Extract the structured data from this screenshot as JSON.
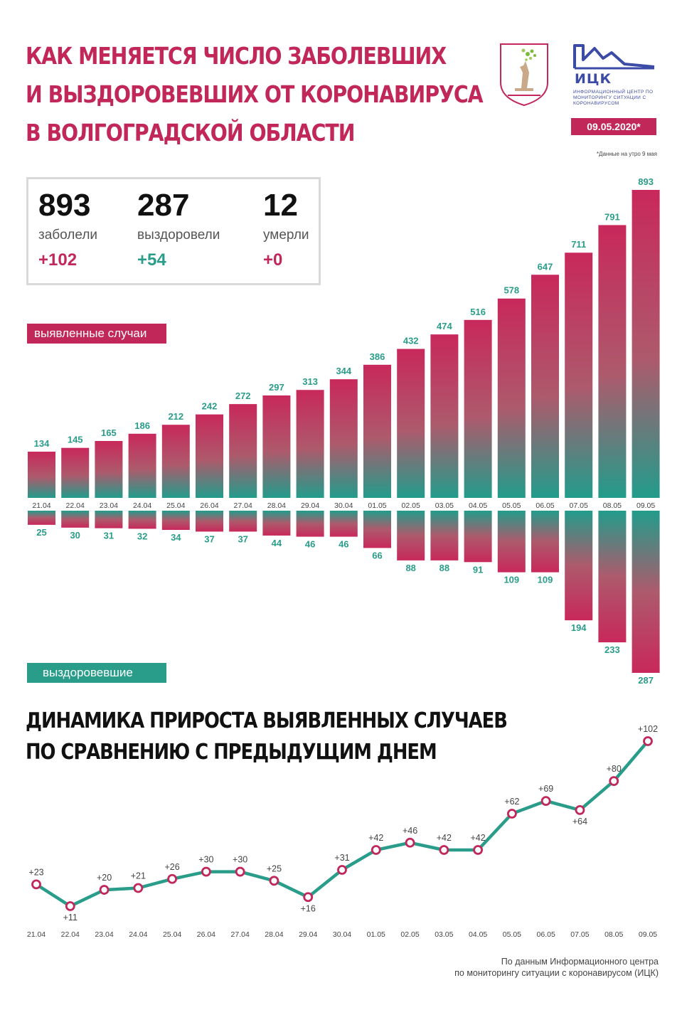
{
  "header": {
    "title_lines": [
      "КАК МЕНЯЕТСЯ ЧИСЛО ЗАБОЛЕВШИХ",
      "И ВЫЗДОРОВЕВШИХ ОТ КОРОНАВИРУСА",
      "В ВОЛГОГРАДСКОЙ ОБЛАСТИ"
    ],
    "logo_name": "ИЦК",
    "logo_subtitle": "ИНФОРМАЦИОННЫЙ ЦЕНТР ПО МОНИТОРИНГУ СИТУАЦИИ С КОРОНАВИРУСОМ",
    "date": "09.05.2020*",
    "note": "*Данные на утро 9 мая",
    "emblem_icon": "volgograd-coat-of-arms-icon"
  },
  "stats": [
    {
      "value": "893",
      "label": "заболели",
      "delta": "+102",
      "color": "#c2275a"
    },
    {
      "value": "287",
      "label": "выздоровели",
      "delta": "+54",
      "color": "#2a9d8a"
    },
    {
      "value": "12",
      "label": "умерли",
      "delta": "+0",
      "color": "#c2275a"
    }
  ],
  "labels": {
    "cases": "выявленные случаи",
    "recovered": "выздоровевшие"
  },
  "subtitle_lines": [
    "ДИНАМИКА ПРИРОСТА ВЫЯВЛЕННЫХ СЛУЧАЕВ",
    "ПО СРАВНЕНИЮ С ПРЕДЫДУЩИМ ДНЕМ"
  ],
  "source_lines": [
    "По данным Информационного центра",
    "по мониторингу ситуации с коронавирусом (ИЦК)"
  ],
  "colors": {
    "brand_red": "#c2275a",
    "brand_teal": "#2a9d8a",
    "logo_blue": "#3b4ba6"
  },
  "chart_data": [
    {
      "type": "bar",
      "categories": [
        "21.04",
        "22.04",
        "23.04",
        "24.04",
        "25.04",
        "26.04",
        "27.04",
        "28.04",
        "29.04",
        "30.04",
        "01.05",
        "02.05",
        "03.05",
        "04.05",
        "05.05",
        "06.05",
        "07.05",
        "08.05",
        "09.05"
      ],
      "series": [
        {
          "name": "выявленные случаи",
          "values": [
            134,
            145,
            165,
            186,
            212,
            242,
            272,
            297,
            313,
            344,
            386,
            432,
            474,
            516,
            578,
            647,
            711,
            791,
            893
          ]
        },
        {
          "name": "выздоровевшие",
          "values": [
            25,
            30,
            31,
            32,
            34,
            37,
            37,
            44,
            46,
            46,
            66,
            88,
            88,
            91,
            109,
            109,
            194,
            233,
            287
          ]
        }
      ]
    },
    {
      "type": "line",
      "title": "ДИНАМИКА ПРИРОСТА ВЫЯВЛЕННЫХ СЛУЧАЕВ ПО СРАВНЕНИЮ С ПРЕДЫДУЩИМ ДНЕМ",
      "x": [
        "21.04",
        "22.04",
        "23.04",
        "24.04",
        "25.04",
        "26.04",
        "27.04",
        "28.04",
        "29.04",
        "30.04",
        "01.05",
        "02.05",
        "03.05",
        "04.05",
        "05.05",
        "06.05",
        "07.05",
        "08.05",
        "09.05"
      ],
      "y": [
        23,
        11,
        20,
        21,
        26,
        30,
        30,
        25,
        16,
        31,
        42,
        46,
        42,
        42,
        62,
        69,
        64,
        80,
        102
      ],
      "labels": [
        "+23",
        "+11",
        "+20",
        "+21",
        "+26",
        "+30",
        "+30",
        "+25",
        "+16",
        "+31",
        "+42",
        "+46",
        "+42",
        "+42",
        "+62",
        "+69",
        "+64",
        "+80",
        "+102"
      ]
    }
  ]
}
